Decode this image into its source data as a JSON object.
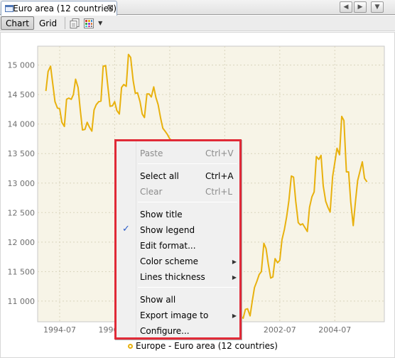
{
  "tab": {
    "title": "Euro area (12 countries)",
    "close_glyph": "⊠"
  },
  "nav": {
    "prev": "◀",
    "next": "▶",
    "menu": "▼"
  },
  "toolbar": {
    "chart_label": "Chart",
    "grid_label": "Grid",
    "dropdown_glyph": "▼"
  },
  "chart_data": {
    "type": "line",
    "title": "",
    "xlabel": "",
    "ylabel": "",
    "series_color": "#e8b10e",
    "background": "#f7f4e7",
    "grid": true,
    "ylim": [
      10650,
      15320
    ],
    "xlim": [
      1993.7,
      2006.3
    ],
    "yticks": [
      11000,
      11500,
      12000,
      12500,
      13000,
      13500,
      14000,
      14500,
      15000
    ],
    "ytick_labels": [
      "11 000",
      "11 500",
      "12 000",
      "12 500",
      "13 000",
      "13 500",
      "14 000",
      "14 500",
      "15 000"
    ],
    "xticks": [
      1994.5,
      1996.5,
      1998.5,
      2000.5,
      2002.5,
      2004.5
    ],
    "xtick_labels": [
      "1994-07",
      "1996-07",
      "1998-07",
      "2000-07",
      "2002-07",
      "2004-07"
    ],
    "series": [
      {
        "name": "Europe - Euro area (12 countries)",
        "x": [
          1994.0,
          1994.08,
          1994.17,
          1994.25,
          1994.33,
          1994.42,
          1994.5,
          1994.58,
          1994.67,
          1994.75,
          1994.83,
          1994.92,
          1995.0,
          1995.08,
          1995.17,
          1995.25,
          1995.33,
          1995.42,
          1995.5,
          1995.58,
          1995.67,
          1995.75,
          1995.83,
          1995.92,
          1996.0,
          1996.08,
          1996.17,
          1996.25,
          1996.33,
          1996.42,
          1996.5,
          1996.58,
          1996.67,
          1996.75,
          1996.83,
          1996.92,
          1997.0,
          1997.08,
          1997.17,
          1997.25,
          1997.33,
          1997.42,
          1997.5,
          1997.58,
          1997.67,
          1997.75,
          1997.83,
          1997.92,
          1998.0,
          1998.08,
          1998.17,
          1998.25,
          1998.33,
          1998.42,
          1998.5,
          1998.58,
          1998.67,
          2000.83,
          2000.92,
          2001.0,
          2001.08,
          2001.17,
          2001.25,
          2001.33,
          2001.42,
          2001.5,
          2001.58,
          2001.67,
          2001.75,
          2001.83,
          2001.92,
          2002.0,
          2002.08,
          2002.17,
          2002.25,
          2002.33,
          2002.42,
          2002.5,
          2002.58,
          2002.67,
          2002.75,
          2002.83,
          2002.92,
          2003.0,
          2003.08,
          2003.17,
          2003.25,
          2003.33,
          2003.42,
          2003.5,
          2003.58,
          2003.67,
          2003.75,
          2003.83,
          2003.92,
          2004.0,
          2004.08,
          2004.17,
          2004.25,
          2004.33,
          2004.42,
          2004.5,
          2004.58,
          2004.67,
          2004.75,
          2004.83,
          2004.92,
          2005.0,
          2005.08,
          2005.17,
          2005.25,
          2005.33,
          2005.42,
          2005.5,
          2005.58,
          2005.67
        ],
        "values": [
          14560,
          14890,
          14980,
          14680,
          14380,
          14270,
          14260,
          14030,
          13960,
          14420,
          14440,
          14420,
          14500,
          14760,
          14620,
          14240,
          13900,
          13910,
          14030,
          13950,
          13880,
          14240,
          14330,
          14380,
          14390,
          14980,
          14990,
          14640,
          14300,
          14310,
          14380,
          14230,
          14170,
          14620,
          14670,
          14640,
          15180,
          15130,
          14740,
          14520,
          14530,
          14380,
          14170,
          14110,
          14510,
          14510,
          14460,
          14630,
          14450,
          14330,
          14100,
          13930,
          13880,
          13820,
          13750,
          13720,
          13680,
          11630,
          11460,
          11050,
          10750,
          10710,
          10860,
          10870,
          10750,
          11000,
          11230,
          11340,
          11450,
          11500,
          11980,
          11890,
          11630,
          11390,
          11410,
          11720,
          11650,
          11690,
          12040,
          12220,
          12430,
          12700,
          13120,
          13100,
          12690,
          12330,
          12290,
          12310,
          12240,
          12180,
          12590,
          12770,
          12850,
          13450,
          13400,
          13470,
          12950,
          12690,
          12590,
          12510,
          13110,
          13350,
          13590,
          13480,
          14130,
          14060,
          13190,
          13190,
          12680,
          12280,
          12680,
          13040,
          13210,
          13360,
          13080,
          13020
        ]
      }
    ]
  },
  "menu": {
    "items": [
      {
        "key": "paste",
        "label": "Paste",
        "shortcut": "Ctrl+V",
        "disabled": true
      },
      {
        "key": "select_all",
        "label": "Select all",
        "shortcut": "Ctrl+A",
        "disabled": false
      },
      {
        "key": "clear",
        "label": "Clear",
        "shortcut": "Ctrl+L",
        "disabled": true
      },
      {
        "key": "show_title",
        "label": "Show title",
        "shortcut": "",
        "disabled": false
      },
      {
        "key": "show_legend",
        "label": "Show legend",
        "shortcut": "",
        "disabled": false,
        "checked": true
      },
      {
        "key": "edit_format",
        "label": "Edit format...",
        "shortcut": "",
        "disabled": false
      },
      {
        "key": "color_scheme",
        "label": "Color scheme",
        "shortcut": "",
        "disabled": false,
        "submenu": true
      },
      {
        "key": "lines_thickness",
        "label": "Lines thickness",
        "shortcut": "",
        "disabled": false,
        "submenu": true
      },
      {
        "key": "show_all",
        "label": "Show all",
        "shortcut": "",
        "disabled": false
      },
      {
        "key": "export_image",
        "label": "Export image to",
        "shortcut": "",
        "disabled": false,
        "submenu": true
      },
      {
        "key": "configure",
        "label": "Configure...",
        "shortcut": "",
        "disabled": false
      }
    ],
    "check_glyph": "✓",
    "submenu_glyph": "▶",
    "highlight_color": "#e02a37"
  },
  "legend": {
    "label": "Europe - Euro area (12 countries)"
  }
}
